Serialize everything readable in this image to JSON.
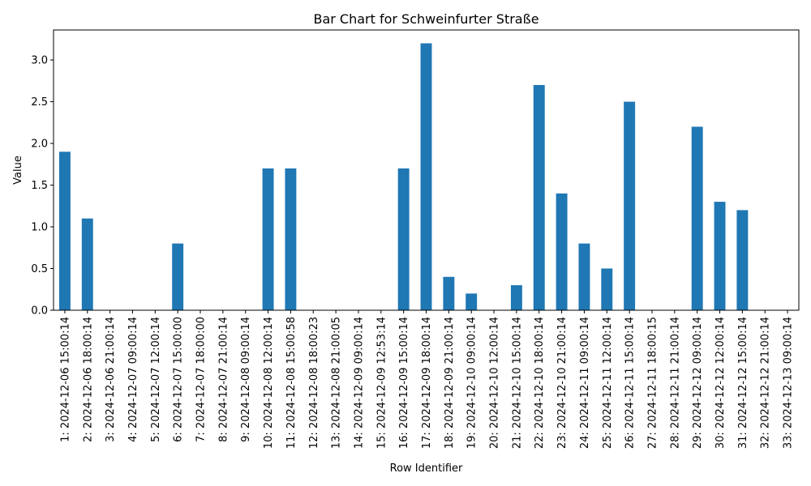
{
  "chart_data": {
    "type": "bar",
    "title": "Bar Chart for Schweinfurter Straße",
    "xlabel": "Row Identifier",
    "ylabel": "Value",
    "ylim": [
      0,
      3.36
    ],
    "yticks": [
      "0.0",
      "0.5",
      "1.0",
      "1.5",
      "2.0",
      "2.5",
      "3.0"
    ],
    "bar_color": "#1f77b4",
    "grid": false,
    "categories": [
      "1: 2024-12-06 15:00:14",
      "2: 2024-12-06 18:00:14",
      "3: 2024-12-06 21:00:14",
      "4: 2024-12-07 09:00:14",
      "5: 2024-12-07 12:00:14",
      "6: 2024-12-07 15:00:00",
      "7: 2024-12-07 18:00:00",
      "8: 2024-12-07 21:00:14",
      "9: 2024-12-08 09:00:14",
      "10: 2024-12-08 12:00:14",
      "11: 2024-12-08 15:00:58",
      "12: 2024-12-08 18:00:23",
      "13: 2024-12-08 21:00:05",
      "14: 2024-12-09 09:00:14",
      "15: 2024-12-09 12:53:14",
      "16: 2024-12-09 15:00:14",
      "17: 2024-12-09 18:00:14",
      "18: 2024-12-09 21:00:14",
      "19: 2024-12-10 09:00:14",
      "20: 2024-12-10 12:00:14",
      "21: 2024-12-10 15:00:14",
      "22: 2024-12-10 18:00:14",
      "23: 2024-12-10 21:00:14",
      "24: 2024-12-11 09:00:14",
      "25: 2024-12-11 12:00:14",
      "26: 2024-12-11 15:00:14",
      "27: 2024-12-11 18:00:15",
      "28: 2024-12-11 21:00:14",
      "29: 2024-12-12 09:00:14",
      "30: 2024-12-12 12:00:14",
      "31: 2024-12-12 15:00:14",
      "32: 2024-12-12 21:00:14",
      "33: 2024-12-13 09:00:14"
    ],
    "values": [
      1.9,
      1.1,
      0,
      0,
      0,
      0.8,
      0,
      0,
      0,
      1.7,
      1.7,
      0,
      0,
      0,
      0,
      1.7,
      3.2,
      0.4,
      0.2,
      0,
      0.3,
      2.7,
      1.4,
      0.8,
      0.5,
      2.5,
      0,
      0,
      2.2,
      1.3,
      1.2,
      0,
      0
    ]
  }
}
